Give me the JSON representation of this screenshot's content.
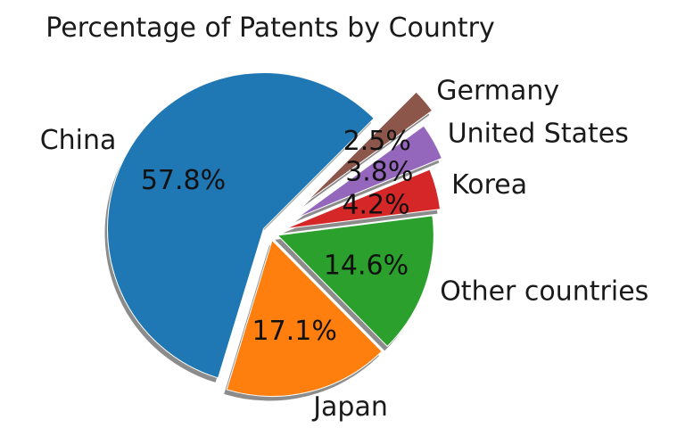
{
  "chart_data": {
    "type": "pie",
    "title": "Percentage of Patents by Country",
    "categories": [
      "China",
      "Japan",
      "Other countries",
      "Korea",
      "United States",
      "Germany"
    ],
    "values": [
      57.8,
      17.1,
      14.6,
      4.2,
      3.8,
      2.5
    ],
    "percent_labels": [
      "57.8%",
      "17.1%",
      "14.6%",
      "4.2%",
      "3.8%",
      "2.5%"
    ],
    "explode": [
      0.05,
      0.05,
      0.05,
      0.1,
      0.2,
      0.3
    ],
    "colors": [
      "#1f77b4",
      "#ff7f0e",
      "#2ca02c",
      "#d62728",
      "#9467bd",
      "#8c564b"
    ],
    "start_angle": 45,
    "shadow": true,
    "legend": "none"
  }
}
